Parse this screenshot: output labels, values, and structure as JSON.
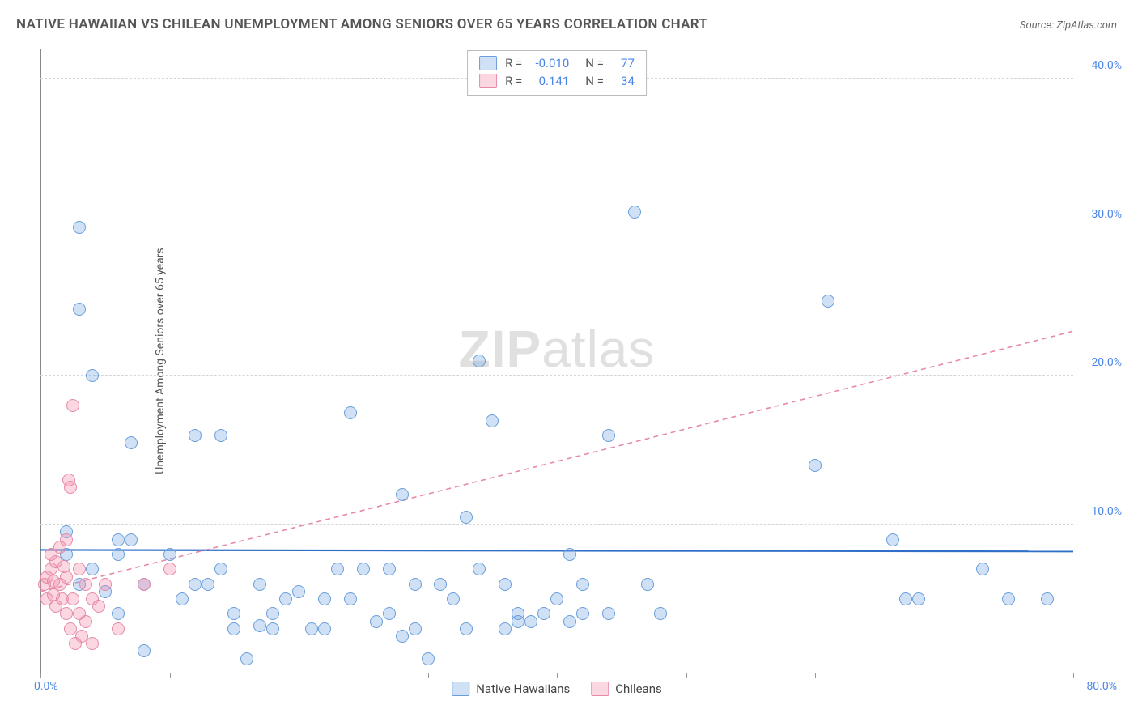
{
  "title": "NATIVE HAWAIIAN VS CHILEAN UNEMPLOYMENT AMONG SENIORS OVER 65 YEARS CORRELATION CHART",
  "source": "Source: ZipAtlas.com",
  "y_axis_label": "Unemployment Among Seniors over 65 years",
  "watermark_prefix": "ZIP",
  "watermark_suffix": "atlas",
  "chart": {
    "type": "scatter",
    "xlim": [
      0,
      80
    ],
    "ylim": [
      0,
      42
    ],
    "y_gridlines": [
      10,
      20,
      30,
      40
    ],
    "y_tick_labels": [
      "10.0%",
      "20.0%",
      "30.0%",
      "40.0%"
    ],
    "x_ticks": [
      0,
      10,
      20,
      30,
      40,
      50,
      60,
      70,
      80
    ],
    "x_label_min": "0.0%",
    "x_label_max": "80.0%",
    "grid_color": "#d5d5d5",
    "axis_color": "#888888",
    "background_color": "#ffffff",
    "marker_radius": 8,
    "marker_stroke_width": 1.4,
    "series": [
      {
        "name": "Native Hawaiians",
        "fill": "rgba(120,170,230,0.35)",
        "stroke": "#6a9edb",
        "trend": {
          "color": "#2f6fc9",
          "width": 2.2,
          "dash": "none",
          "y1": 8.3,
          "y2": 8.2
        },
        "points": [
          [
            3,
            30
          ],
          [
            3,
            24.5
          ],
          [
            4,
            20
          ],
          [
            2,
            9.5
          ],
          [
            2,
            8
          ],
          [
            6,
            9
          ],
          [
            6,
            8
          ],
          [
            7,
            15.5
          ],
          [
            7,
            9
          ],
          [
            8,
            6
          ],
          [
            8,
            1.5
          ],
          [
            10,
            8
          ],
          [
            11,
            5
          ],
          [
            12,
            16
          ],
          [
            12,
            6
          ],
          [
            13,
            6
          ],
          [
            14,
            16
          ],
          [
            14,
            7
          ],
          [
            15,
            3
          ],
          [
            15,
            4
          ],
          [
            16,
            1
          ],
          [
            17,
            6
          ],
          [
            17,
            3.2
          ],
          [
            18,
            4
          ],
          [
            18,
            3
          ],
          [
            19,
            5
          ],
          [
            20,
            5.5
          ],
          [
            21,
            3
          ],
          [
            22,
            5
          ],
          [
            22,
            3
          ],
          [
            23,
            7
          ],
          [
            24,
            17.5
          ],
          [
            24,
            5
          ],
          [
            25,
            7
          ],
          [
            26,
            3.5
          ],
          [
            27,
            7
          ],
          [
            27,
            4
          ],
          [
            28,
            12
          ],
          [
            28,
            2.5
          ],
          [
            29,
            6
          ],
          [
            29,
            3
          ],
          [
            30,
            1
          ],
          [
            31,
            6
          ],
          [
            32,
            5
          ],
          [
            33,
            10.5
          ],
          [
            33,
            3
          ],
          [
            34,
            21
          ],
          [
            34,
            7
          ],
          [
            35,
            17
          ],
          [
            36,
            6
          ],
          [
            36,
            3
          ],
          [
            37,
            4
          ],
          [
            37,
            3.5
          ],
          [
            38,
            3.5
          ],
          [
            39,
            4
          ],
          [
            40,
            5
          ],
          [
            41,
            8
          ],
          [
            41,
            3.5
          ],
          [
            42,
            6
          ],
          [
            42,
            4
          ],
          [
            44,
            16
          ],
          [
            44,
            4
          ],
          [
            46,
            31
          ],
          [
            47,
            6
          ],
          [
            48,
            4
          ],
          [
            60,
            14
          ],
          [
            61,
            25
          ],
          [
            66,
            9
          ],
          [
            67,
            5
          ],
          [
            68,
            5
          ],
          [
            73,
            7
          ],
          [
            75,
            5
          ],
          [
            78,
            5
          ],
          [
            3,
            6
          ],
          [
            4,
            7
          ],
          [
            5,
            5.5
          ],
          [
            6,
            4
          ]
        ]
      },
      {
        "name": "Chileans",
        "fill": "rgba(240,140,170,0.35)",
        "stroke": "#e68aa8",
        "trend": {
          "color": "#e68aa8",
          "width": 1.6,
          "dash": "6,5",
          "y1": 5.5,
          "y2": 23
        },
        "points": [
          [
            0.3,
            6
          ],
          [
            0.5,
            6.5
          ],
          [
            0.5,
            5
          ],
          [
            0.8,
            7
          ],
          [
            0.8,
            8
          ],
          [
            1,
            6.2
          ],
          [
            1,
            5.3
          ],
          [
            1.2,
            7.5
          ],
          [
            1.2,
            4.5
          ],
          [
            1.5,
            8.5
          ],
          [
            1.5,
            6
          ],
          [
            1.7,
            5
          ],
          [
            1.8,
            7.2
          ],
          [
            2,
            9
          ],
          [
            2,
            6.5
          ],
          [
            2,
            4
          ],
          [
            2.2,
            13
          ],
          [
            2.3,
            12.5
          ],
          [
            2.3,
            3
          ],
          [
            2.5,
            18
          ],
          [
            2.5,
            5
          ],
          [
            2.7,
            2
          ],
          [
            3,
            7
          ],
          [
            3,
            4
          ],
          [
            3.2,
            2.5
          ],
          [
            3.5,
            6
          ],
          [
            3.5,
            3.5
          ],
          [
            4,
            5
          ],
          [
            4,
            2
          ],
          [
            4.5,
            4.5
          ],
          [
            5,
            6
          ],
          [
            6,
            3
          ],
          [
            8,
            6
          ],
          [
            10,
            7
          ]
        ]
      }
    ]
  },
  "stats": [
    {
      "swatch_fill": "rgba(120,170,230,0.35)",
      "swatch_stroke": "#6a9edb",
      "r_label": "R =",
      "r": "-0.010",
      "n_label": "N =",
      "n": "77"
    },
    {
      "swatch_fill": "rgba(240,140,170,0.35)",
      "swatch_stroke": "#e68aa8",
      "r_label": "R =",
      "r": "0.141",
      "n_label": "N =",
      "n": "34"
    }
  ],
  "legend": [
    {
      "swatch_fill": "rgba(120,170,230,0.35)",
      "swatch_stroke": "#6a9edb",
      "label": "Native Hawaiians"
    },
    {
      "swatch_fill": "rgba(240,140,170,0.35)",
      "swatch_stroke": "#e68aa8",
      "label": "Chileans"
    }
  ],
  "value_color": "#4a86e8"
}
